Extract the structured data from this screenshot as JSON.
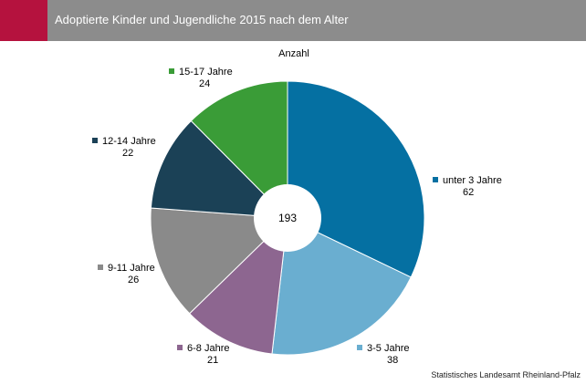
{
  "header": {
    "title": "Adoptierte Kinder und Jugendliche 2015 nach dem Alter",
    "brand_color": "#b5123e",
    "bar_color": "#8c8c8c"
  },
  "footer": {
    "source": "Statistisches Landesamt Rheinland-Pfalz"
  },
  "chart_data": {
    "type": "pie",
    "variant": "donut",
    "subtitle": "Anzahl",
    "total_label": "193",
    "start": "12 o'clock",
    "direction": "clockwise",
    "legend": "labels beside slices",
    "slices": [
      {
        "label": "unter 3 Jahre",
        "value": 62,
        "color": "#0570a2"
      },
      {
        "label": "3-5 Jahre",
        "value": 38,
        "color": "#6aaed0"
      },
      {
        "label": "6-8 Jahre",
        "value": 21,
        "color": "#8d6690"
      },
      {
        "label": "9-11 Jahre",
        "value": 26,
        "color": "#8a8a8a"
      },
      {
        "label": "12-14 Jahre",
        "value": 22,
        "color": "#1b4156"
      },
      {
        "label": "15-17 Jahre",
        "value": 24,
        "color": "#3a9c37"
      }
    ]
  }
}
